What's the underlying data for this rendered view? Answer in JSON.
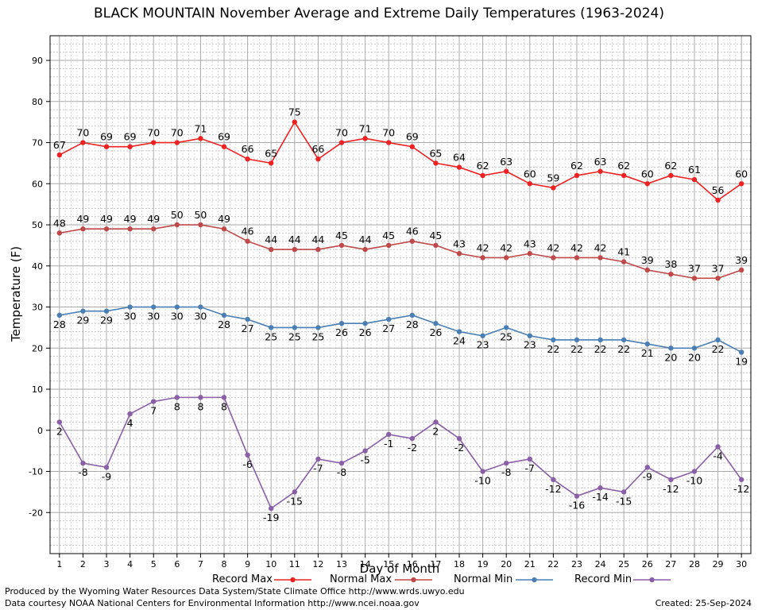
{
  "title": "BLACK MOUNTAIN November Average and Extreme Daily Temperatures (1963-2024)",
  "footer": {
    "produced_by": "Produced by the Wyoming Water Resources Data System/State Climate Office http://www.wrds.uwyo.edu",
    "courtesy": "Data courtesy NOAA National Centers for Environmental Information http://www.ncei.noaa.gov",
    "created": "Created:  25-Sep-2024"
  },
  "chart_data": {
    "type": "line",
    "title": "BLACK MOUNTAIN November Average and Extreme Daily Temperatures (1963-2024)",
    "xlabel": "Day of Month",
    "ylabel": "Temperature (F)",
    "x": [
      1,
      2,
      3,
      4,
      5,
      6,
      7,
      8,
      9,
      10,
      11,
      12,
      13,
      14,
      15,
      16,
      17,
      18,
      19,
      20,
      21,
      22,
      23,
      24,
      25,
      26,
      27,
      28,
      29,
      30
    ],
    "xlim": [
      0.6,
      30.4
    ],
    "ylim": [
      -30,
      96
    ],
    "yticks": [
      -20,
      -10,
      0,
      10,
      20,
      30,
      40,
      50,
      60,
      70,
      80,
      90
    ],
    "grid": true,
    "legend_position": "bottom",
    "series": [
      {
        "name": "Record Max",
        "color": "#ee2222",
        "label_position": "above",
        "values": [
          67,
          70,
          69,
          69,
          70,
          70,
          71,
          69,
          66,
          65,
          75,
          66,
          70,
          71,
          70,
          69,
          65,
          64,
          62,
          63,
          60,
          59,
          62,
          63,
          62,
          60,
          62,
          61,
          56,
          60
        ]
      },
      {
        "name": "Normal Max",
        "color": "#c04848",
        "label_position": "above",
        "values": [
          48,
          49,
          49,
          49,
          49,
          50,
          50,
          49,
          46,
          44,
          44,
          44,
          45,
          44,
          45,
          46,
          45,
          43,
          42,
          42,
          43,
          42,
          42,
          42,
          41,
          39,
          38,
          37,
          37,
          39
        ]
      },
      {
        "name": "Normal Min",
        "color": "#4a7fb5",
        "label_position": "below",
        "values": [
          28,
          29,
          29,
          30,
          30,
          30,
          30,
          28,
          27,
          25,
          25,
          25,
          26,
          26,
          27,
          28,
          26,
          24,
          23,
          25,
          23,
          22,
          22,
          22,
          22,
          21,
          20,
          20,
          22,
          19
        ]
      },
      {
        "name": "Record Min",
        "color": "#8a5fa8",
        "label_position": "below",
        "values": [
          2,
          -8,
          -9,
          4,
          7,
          8,
          8,
          8,
          -6,
          -19,
          -15,
          -7,
          -8,
          -5,
          -1,
          -2,
          2,
          -2,
          -10,
          -8,
          -7,
          -12,
          -16,
          -14,
          -15,
          -9,
          -12,
          -10,
          -4,
          -12
        ]
      }
    ]
  }
}
